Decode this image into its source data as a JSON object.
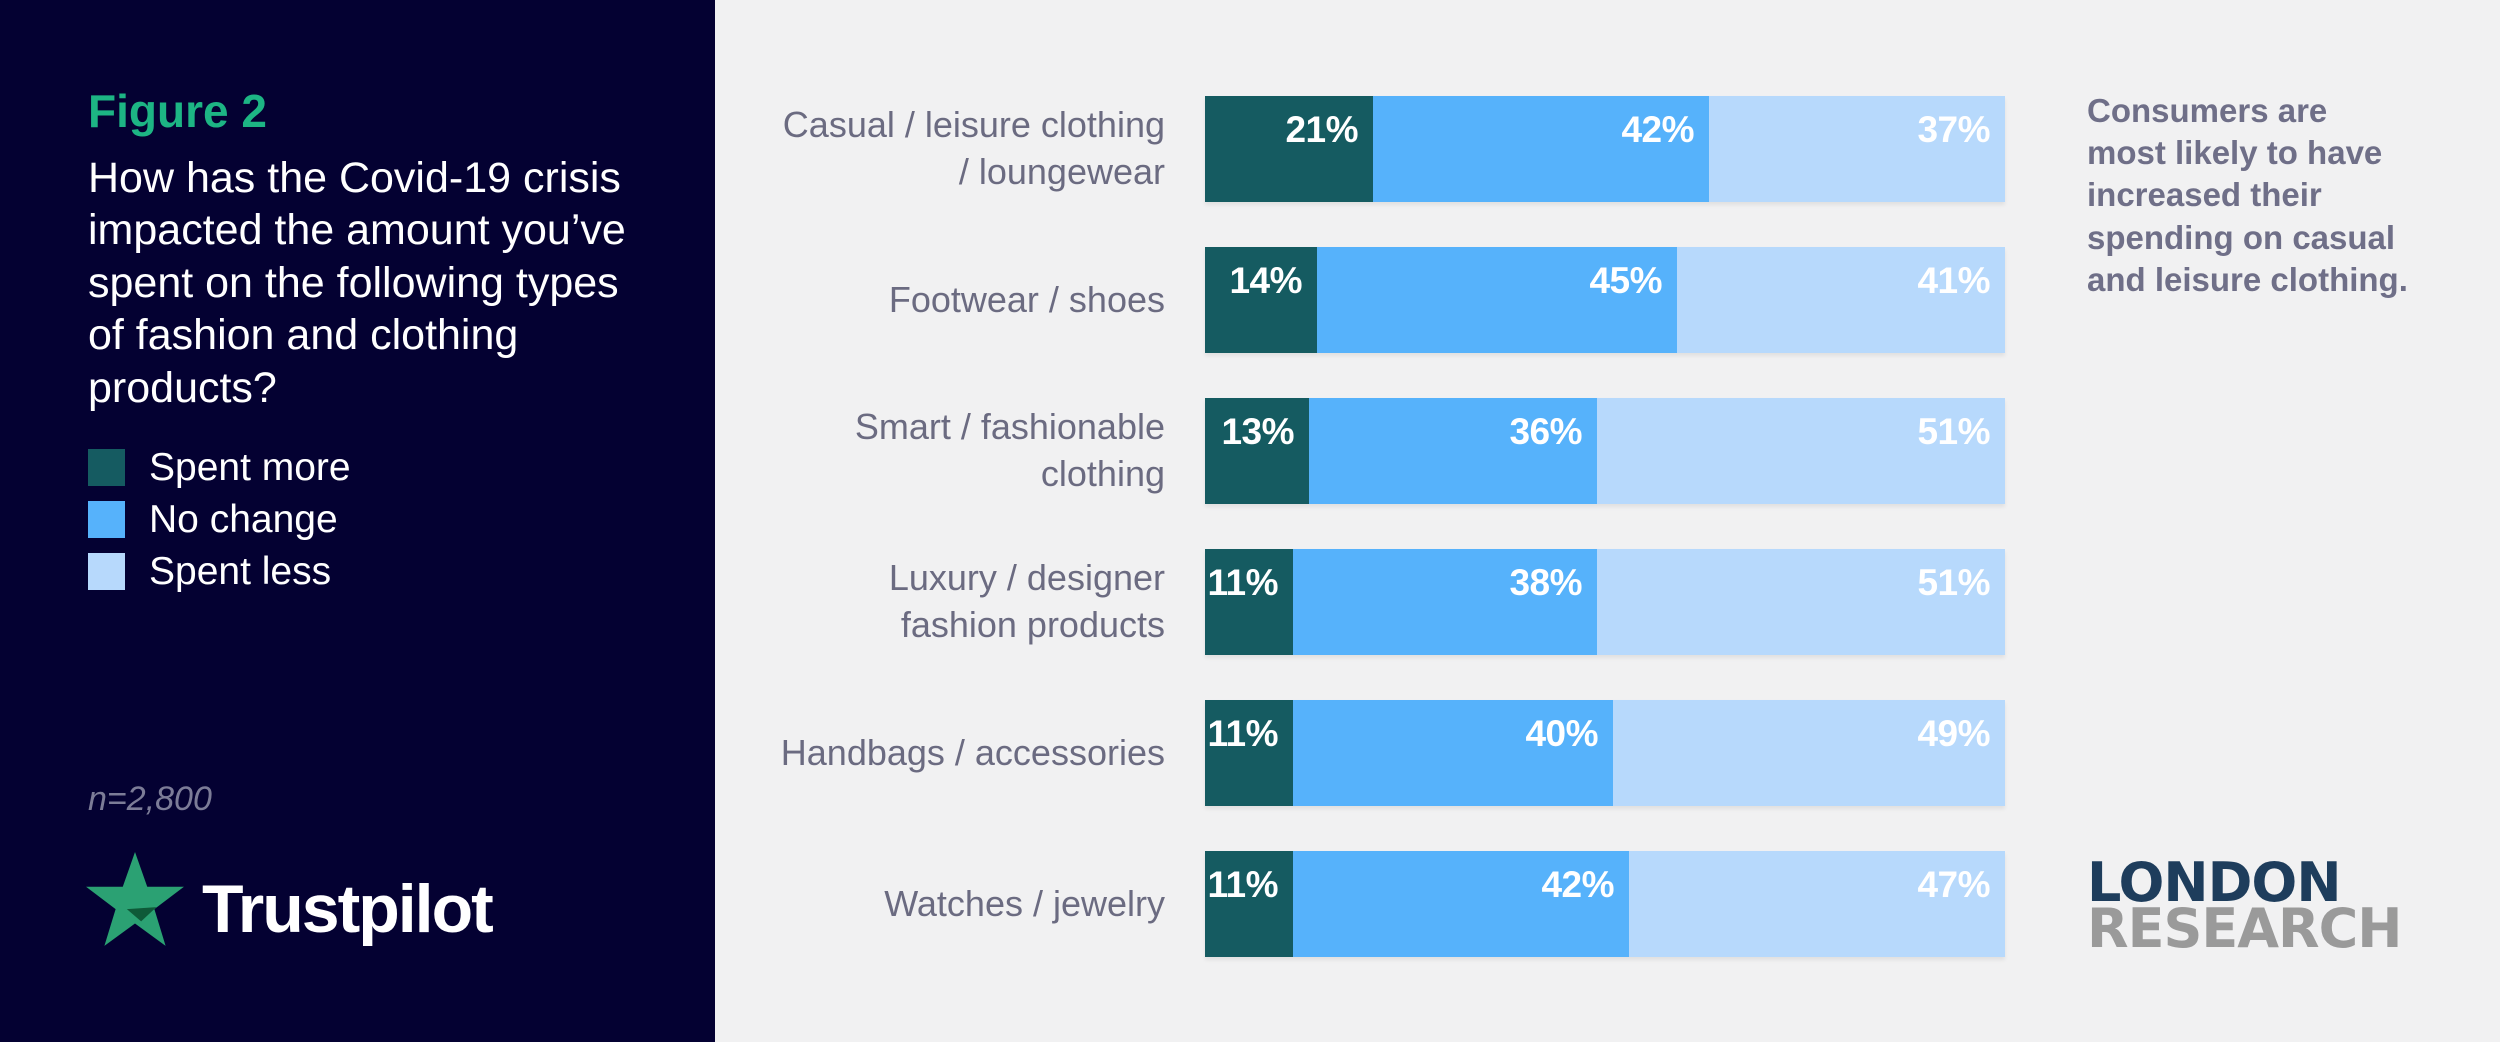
{
  "theme": {
    "navy": "#040132",
    "page-bg": "#f1f1f2",
    "figure-green": "#1DB584",
    "star-green": "#2BA173",
    "star-shadow": "#0E5A38",
    "label-gray": "#6B6B81",
    "callout-gray": "#6F6F88",
    "sample-gray": "#7C7C97",
    "london-navy": "#1E3D5C",
    "research-gray": "#9A9A9A",
    "white": "#FFFFFF"
  },
  "left_panel": {
    "figure_label": "Figure 2",
    "question": "How has the Covid-19 crisis\nimpacted the amount you’ve\nspent on the following types\nof fashion and clothing\nproducts?",
    "sample_size": "n=2,800",
    "brand_wordmark": "Trustpilot"
  },
  "callout": {
    "text": "Consumers are\nmost likely to have\nincreased their\nspending on casual\nand leisure clothing."
  },
  "source_logo": {
    "line1": "LONDON",
    "line2": "RESEARCH"
  },
  "chart_data": {
    "type": "bar",
    "orientation": "horizontal",
    "stacked": true,
    "grid": false,
    "legend_position": "left-panel",
    "value_suffix": "%",
    "xlim": [
      0,
      100
    ],
    "categories": [
      "Casual / leisure clothing\n/ loungewear",
      "Footwear / shoes",
      "Smart / fashionable\nclothing",
      "Luxury / designer\nfashion products",
      "Handbags / accessories",
      "Watches / jewelry"
    ],
    "series": [
      {
        "name": "Spent more",
        "color": "#155B61",
        "values": [
          21,
          14,
          13,
          11,
          11,
          11
        ]
      },
      {
        "name": "No change",
        "color": "#56B2FB",
        "values": [
          42,
          45,
          36,
          38,
          40,
          42
        ]
      },
      {
        "name": "Spent less",
        "color": "#B7D9FC",
        "values": [
          37,
          41,
          51,
          51,
          49,
          47
        ]
      }
    ]
  }
}
